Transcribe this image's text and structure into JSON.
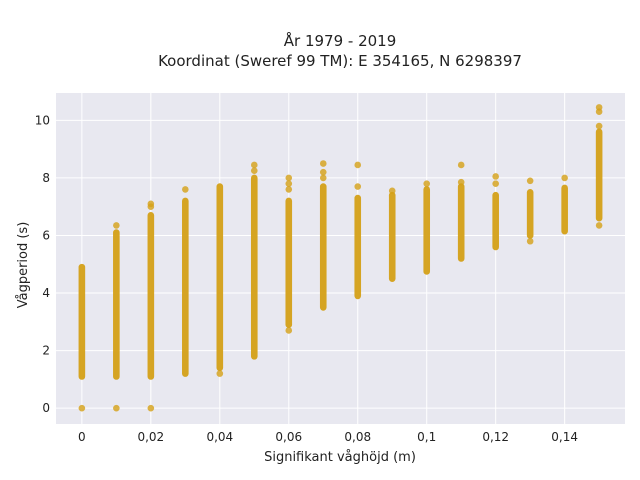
{
  "chart_data": {
    "type": "scatter",
    "title": "År 1979 - 2019",
    "subtitle": "Koordinat (Sweref 99 TM): E 354165, N 6298397",
    "xlabel": "Signifikant våghöjd (m)",
    "ylabel": "Vågperiod (s)",
    "xlim": [
      -0.0075,
      0.1575
    ],
    "ylim": [
      -0.55,
      10.95
    ],
    "x_ticks": [
      0,
      0.02,
      0.04,
      0.06,
      0.08,
      0.1,
      0.12,
      0.14
    ],
    "x_tick_labels": [
      "0",
      "0,02",
      "0,04",
      "0,06",
      "0,08",
      "0,1",
      "0,12",
      "0,14"
    ],
    "y_ticks": [
      0,
      2,
      4,
      6,
      8,
      10
    ],
    "y_tick_labels": [
      "0",
      "2",
      "4",
      "6",
      "8",
      "10"
    ],
    "grid": true,
    "marker_color": "#d4a017",
    "plot_background": "#e8e8f0",
    "series": [
      {
        "columns": [
          {
            "x": 0.0,
            "ymin": 1.1,
            "ymax": 4.9,
            "outliers": [
              0.0
            ]
          },
          {
            "x": 0.01,
            "ymin": 1.1,
            "ymax": 6.1,
            "outliers": [
              0.0,
              6.35
            ]
          },
          {
            "x": 0.02,
            "ymin": 1.1,
            "ymax": 6.7,
            "outliers": [
              0.0,
              7.0,
              7.1
            ]
          },
          {
            "x": 0.03,
            "ymin": 1.2,
            "ymax": 7.2,
            "outliers": [
              7.6
            ]
          },
          {
            "x": 0.04,
            "ymin": 1.4,
            "ymax": 7.7,
            "outliers": [
              1.2
            ]
          },
          {
            "x": 0.05,
            "ymin": 1.8,
            "ymax": 8.0,
            "outliers": [
              8.25,
              8.45
            ]
          },
          {
            "x": 0.06,
            "ymin": 2.9,
            "ymax": 7.2,
            "outliers": [
              2.7,
              7.6,
              7.8,
              8.0
            ]
          },
          {
            "x": 0.07,
            "ymin": 3.5,
            "ymax": 7.7,
            "outliers": [
              8.0,
              8.2,
              8.5
            ]
          },
          {
            "x": 0.08,
            "ymin": 3.9,
            "ymax": 7.3,
            "outliers": [
              7.7,
              8.45
            ]
          },
          {
            "x": 0.09,
            "ymin": 4.5,
            "ymax": 7.4,
            "outliers": [
              7.55
            ]
          },
          {
            "x": 0.1,
            "ymin": 4.75,
            "ymax": 7.6,
            "outliers": [
              7.8
            ]
          },
          {
            "x": 0.11,
            "ymin": 5.2,
            "ymax": 7.7,
            "outliers": [
              7.85,
              8.45
            ]
          },
          {
            "x": 0.12,
            "ymin": 5.6,
            "ymax": 7.4,
            "outliers": [
              7.8,
              8.05
            ]
          },
          {
            "x": 0.13,
            "ymin": 6.0,
            "ymax": 7.5,
            "outliers": [
              5.8,
              7.9
            ]
          },
          {
            "x": 0.14,
            "ymin": 6.15,
            "ymax": 7.65,
            "outliers": [
              8.0
            ]
          },
          {
            "x": 0.15,
            "ymin": 6.6,
            "ymax": 9.6,
            "outliers": [
              6.35,
              9.8,
              10.3,
              10.45
            ]
          }
        ]
      }
    ]
  }
}
